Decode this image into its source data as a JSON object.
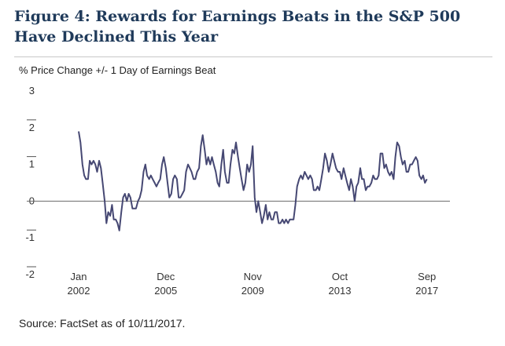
{
  "figure": {
    "title": "Figure 4: Rewards for Earnings Beats in the S&P 500 Have Declined This Year",
    "source": "Source: FactSet as of 10/11/2017."
  },
  "colors": {
    "line": "#464873",
    "title": "#1f3a5a",
    "zero_line": "#6b6b6b"
  },
  "chart_data": {
    "type": "line",
    "title": "Figure 4: Rewards for Earnings Beats in the S&P 500 Have Declined This Year",
    "ylabel": "% Price Change +/- 1 Day of Earnings Beat",
    "xlabel": "",
    "ylim": [
      -2,
      3
    ],
    "yticks": [
      -2,
      -1,
      0,
      1,
      2,
      3
    ],
    "xlim": [
      2002.0,
      2017.75
    ],
    "xticks": [
      {
        "month": "Jan",
        "year": "2002",
        "x": 2002.0
      },
      {
        "month": "Dec",
        "year": "2005",
        "x": 2005.92
      },
      {
        "month": "Nov",
        "year": "2009",
        "x": 2009.83
      },
      {
        "month": "Oct",
        "year": "2013",
        "x": 2013.75
      },
      {
        "month": "Sep",
        "year": "2017",
        "x": 2017.67
      }
    ],
    "grid": false,
    "series": [
      {
        "name": "",
        "points": [
          [
            2002.0,
            1.9
          ],
          [
            2002.08,
            1.6
          ],
          [
            2002.17,
            1.0
          ],
          [
            2002.25,
            0.7
          ],
          [
            2002.33,
            0.6
          ],
          [
            2002.42,
            0.6
          ],
          [
            2002.5,
            1.1
          ],
          [
            2002.58,
            1.0
          ],
          [
            2002.67,
            1.1
          ],
          [
            2002.75,
            1.0
          ],
          [
            2002.83,
            0.8
          ],
          [
            2002.92,
            1.1
          ],
          [
            2003.0,
            0.9
          ],
          [
            2003.08,
            0.5
          ],
          [
            2003.17,
            0.0
          ],
          [
            2003.25,
            -0.6
          ],
          [
            2003.33,
            -0.3
          ],
          [
            2003.42,
            -0.4
          ],
          [
            2003.5,
            -0.1
          ],
          [
            2003.58,
            -0.5
          ],
          [
            2003.67,
            -0.5
          ],
          [
            2003.75,
            -0.6
          ],
          [
            2003.83,
            -0.8
          ],
          [
            2003.92,
            -0.3
          ],
          [
            2004.0,
            0.1
          ],
          [
            2004.08,
            0.2
          ],
          [
            2004.17,
            0.0
          ],
          [
            2004.25,
            0.2
          ],
          [
            2004.33,
            0.1
          ],
          [
            2004.42,
            -0.2
          ],
          [
            2004.5,
            -0.2
          ],
          [
            2004.58,
            -0.2
          ],
          [
            2004.67,
            0.0
          ],
          [
            2004.75,
            0.1
          ],
          [
            2004.83,
            0.3
          ],
          [
            2004.92,
            0.8
          ],
          [
            2005.0,
            1.0
          ],
          [
            2005.08,
            0.7
          ],
          [
            2005.17,
            0.6
          ],
          [
            2005.25,
            0.7
          ],
          [
            2005.33,
            0.6
          ],
          [
            2005.42,
            0.5
          ],
          [
            2005.5,
            0.4
          ],
          [
            2005.58,
            0.5
          ],
          [
            2005.67,
            0.6
          ],
          [
            2005.75,
            1.0
          ],
          [
            2005.83,
            1.2
          ],
          [
            2005.92,
            0.9
          ],
          [
            2006.0,
            0.5
          ],
          [
            2006.08,
            0.1
          ],
          [
            2006.17,
            0.2
          ],
          [
            2006.25,
            0.6
          ],
          [
            2006.33,
            0.7
          ],
          [
            2006.42,
            0.6
          ],
          [
            2006.5,
            0.1
          ],
          [
            2006.58,
            0.1
          ],
          [
            2006.67,
            0.2
          ],
          [
            2006.75,
            0.3
          ],
          [
            2006.83,
            0.8
          ],
          [
            2006.92,
            1.0
          ],
          [
            2007.0,
            0.9
          ],
          [
            2007.08,
            0.8
          ],
          [
            2007.17,
            0.6
          ],
          [
            2007.25,
            0.6
          ],
          [
            2007.33,
            0.8
          ],
          [
            2007.42,
            0.9
          ],
          [
            2007.5,
            1.5
          ],
          [
            2007.58,
            1.8
          ],
          [
            2007.67,
            1.4
          ],
          [
            2007.75,
            1.0
          ],
          [
            2007.83,
            1.2
          ],
          [
            2007.92,
            1.0
          ],
          [
            2008.0,
            1.2
          ],
          [
            2008.08,
            1.0
          ],
          [
            2008.17,
            0.8
          ],
          [
            2008.25,
            0.5
          ],
          [
            2008.33,
            0.4
          ],
          [
            2008.42,
            1.0
          ],
          [
            2008.5,
            1.4
          ],
          [
            2008.58,
            0.8
          ],
          [
            2008.67,
            0.5
          ],
          [
            2008.75,
            0.5
          ],
          [
            2008.83,
            1.0
          ],
          [
            2008.92,
            1.4
          ],
          [
            2009.0,
            1.3
          ],
          [
            2009.08,
            1.6
          ],
          [
            2009.17,
            1.2
          ],
          [
            2009.25,
            0.9
          ],
          [
            2009.33,
            0.6
          ],
          [
            2009.42,
            0.3
          ],
          [
            2009.5,
            0.5
          ],
          [
            2009.58,
            1.0
          ],
          [
            2009.67,
            0.8
          ],
          [
            2009.75,
            1.0
          ],
          [
            2009.83,
            1.5
          ],
          [
            2009.92,
            0.1
          ],
          [
            2010.0,
            -0.3
          ],
          [
            2010.08,
            0.0
          ],
          [
            2010.17,
            -0.3
          ],
          [
            2010.25,
            -0.6
          ],
          [
            2010.33,
            -0.4
          ],
          [
            2010.42,
            -0.1
          ],
          [
            2010.5,
            -0.5
          ],
          [
            2010.58,
            -0.3
          ],
          [
            2010.67,
            -0.5
          ],
          [
            2010.75,
            -0.5
          ],
          [
            2010.83,
            -0.3
          ],
          [
            2010.92,
            -0.3
          ],
          [
            2011.0,
            -0.6
          ],
          [
            2011.08,
            -0.6
          ],
          [
            2011.17,
            -0.5
          ],
          [
            2011.25,
            -0.6
          ],
          [
            2011.33,
            -0.5
          ],
          [
            2011.42,
            -0.6
          ],
          [
            2011.5,
            -0.5
          ],
          [
            2011.58,
            -0.5
          ],
          [
            2011.67,
            -0.5
          ],
          [
            2011.75,
            -0.1
          ],
          [
            2011.83,
            0.4
          ],
          [
            2011.92,
            0.6
          ],
          [
            2012.0,
            0.7
          ],
          [
            2012.08,
            0.6
          ],
          [
            2012.17,
            0.8
          ],
          [
            2012.25,
            0.7
          ],
          [
            2012.33,
            0.6
          ],
          [
            2012.42,
            0.7
          ],
          [
            2012.5,
            0.6
          ],
          [
            2012.58,
            0.3
          ],
          [
            2012.67,
            0.3
          ],
          [
            2012.75,
            0.4
          ],
          [
            2012.83,
            0.3
          ],
          [
            2012.92,
            0.6
          ],
          [
            2013.0,
            0.9
          ],
          [
            2013.08,
            1.3
          ],
          [
            2013.17,
            1.1
          ],
          [
            2013.25,
            0.8
          ],
          [
            2013.33,
            1.0
          ],
          [
            2013.42,
            1.3
          ],
          [
            2013.5,
            1.1
          ],
          [
            2013.58,
            0.9
          ],
          [
            2013.67,
            0.8
          ],
          [
            2013.75,
            0.8
          ],
          [
            2013.83,
            0.6
          ],
          [
            2013.92,
            0.9
          ],
          [
            2014.0,
            0.7
          ],
          [
            2014.08,
            0.5
          ],
          [
            2014.17,
            0.3
          ],
          [
            2014.25,
            0.6
          ],
          [
            2014.33,
            0.4
          ],
          [
            2014.42,
            0.0
          ],
          [
            2014.5,
            0.4
          ],
          [
            2014.58,
            0.5
          ],
          [
            2014.67,
            0.9
          ],
          [
            2014.75,
            0.6
          ],
          [
            2014.83,
            0.6
          ],
          [
            2014.92,
            0.3
          ],
          [
            2015.0,
            0.4
          ],
          [
            2015.08,
            0.4
          ],
          [
            2015.17,
            0.5
          ],
          [
            2015.25,
            0.7
          ],
          [
            2015.33,
            0.6
          ],
          [
            2015.42,
            0.6
          ],
          [
            2015.5,
            0.7
          ],
          [
            2015.58,
            1.3
          ],
          [
            2015.67,
            1.3
          ],
          [
            2015.75,
            0.9
          ],
          [
            2015.83,
            1.0
          ],
          [
            2015.92,
            0.8
          ],
          [
            2016.0,
            0.7
          ],
          [
            2016.08,
            0.8
          ],
          [
            2016.17,
            0.6
          ],
          [
            2016.25,
            1.2
          ],
          [
            2016.33,
            1.6
          ],
          [
            2016.42,
            1.5
          ],
          [
            2016.5,
            1.2
          ],
          [
            2016.58,
            1.0
          ],
          [
            2016.67,
            1.1
          ],
          [
            2016.75,
            0.8
          ],
          [
            2016.83,
            0.8
          ],
          [
            2016.92,
            1.0
          ],
          [
            2017.0,
            1.0
          ],
          [
            2017.08,
            1.1
          ],
          [
            2017.17,
            1.2
          ],
          [
            2017.25,
            1.1
          ],
          [
            2017.33,
            0.7
          ],
          [
            2017.42,
            0.6
          ],
          [
            2017.5,
            0.7
          ],
          [
            2017.58,
            0.5
          ],
          [
            2017.67,
            0.6
          ]
        ]
      }
    ]
  }
}
